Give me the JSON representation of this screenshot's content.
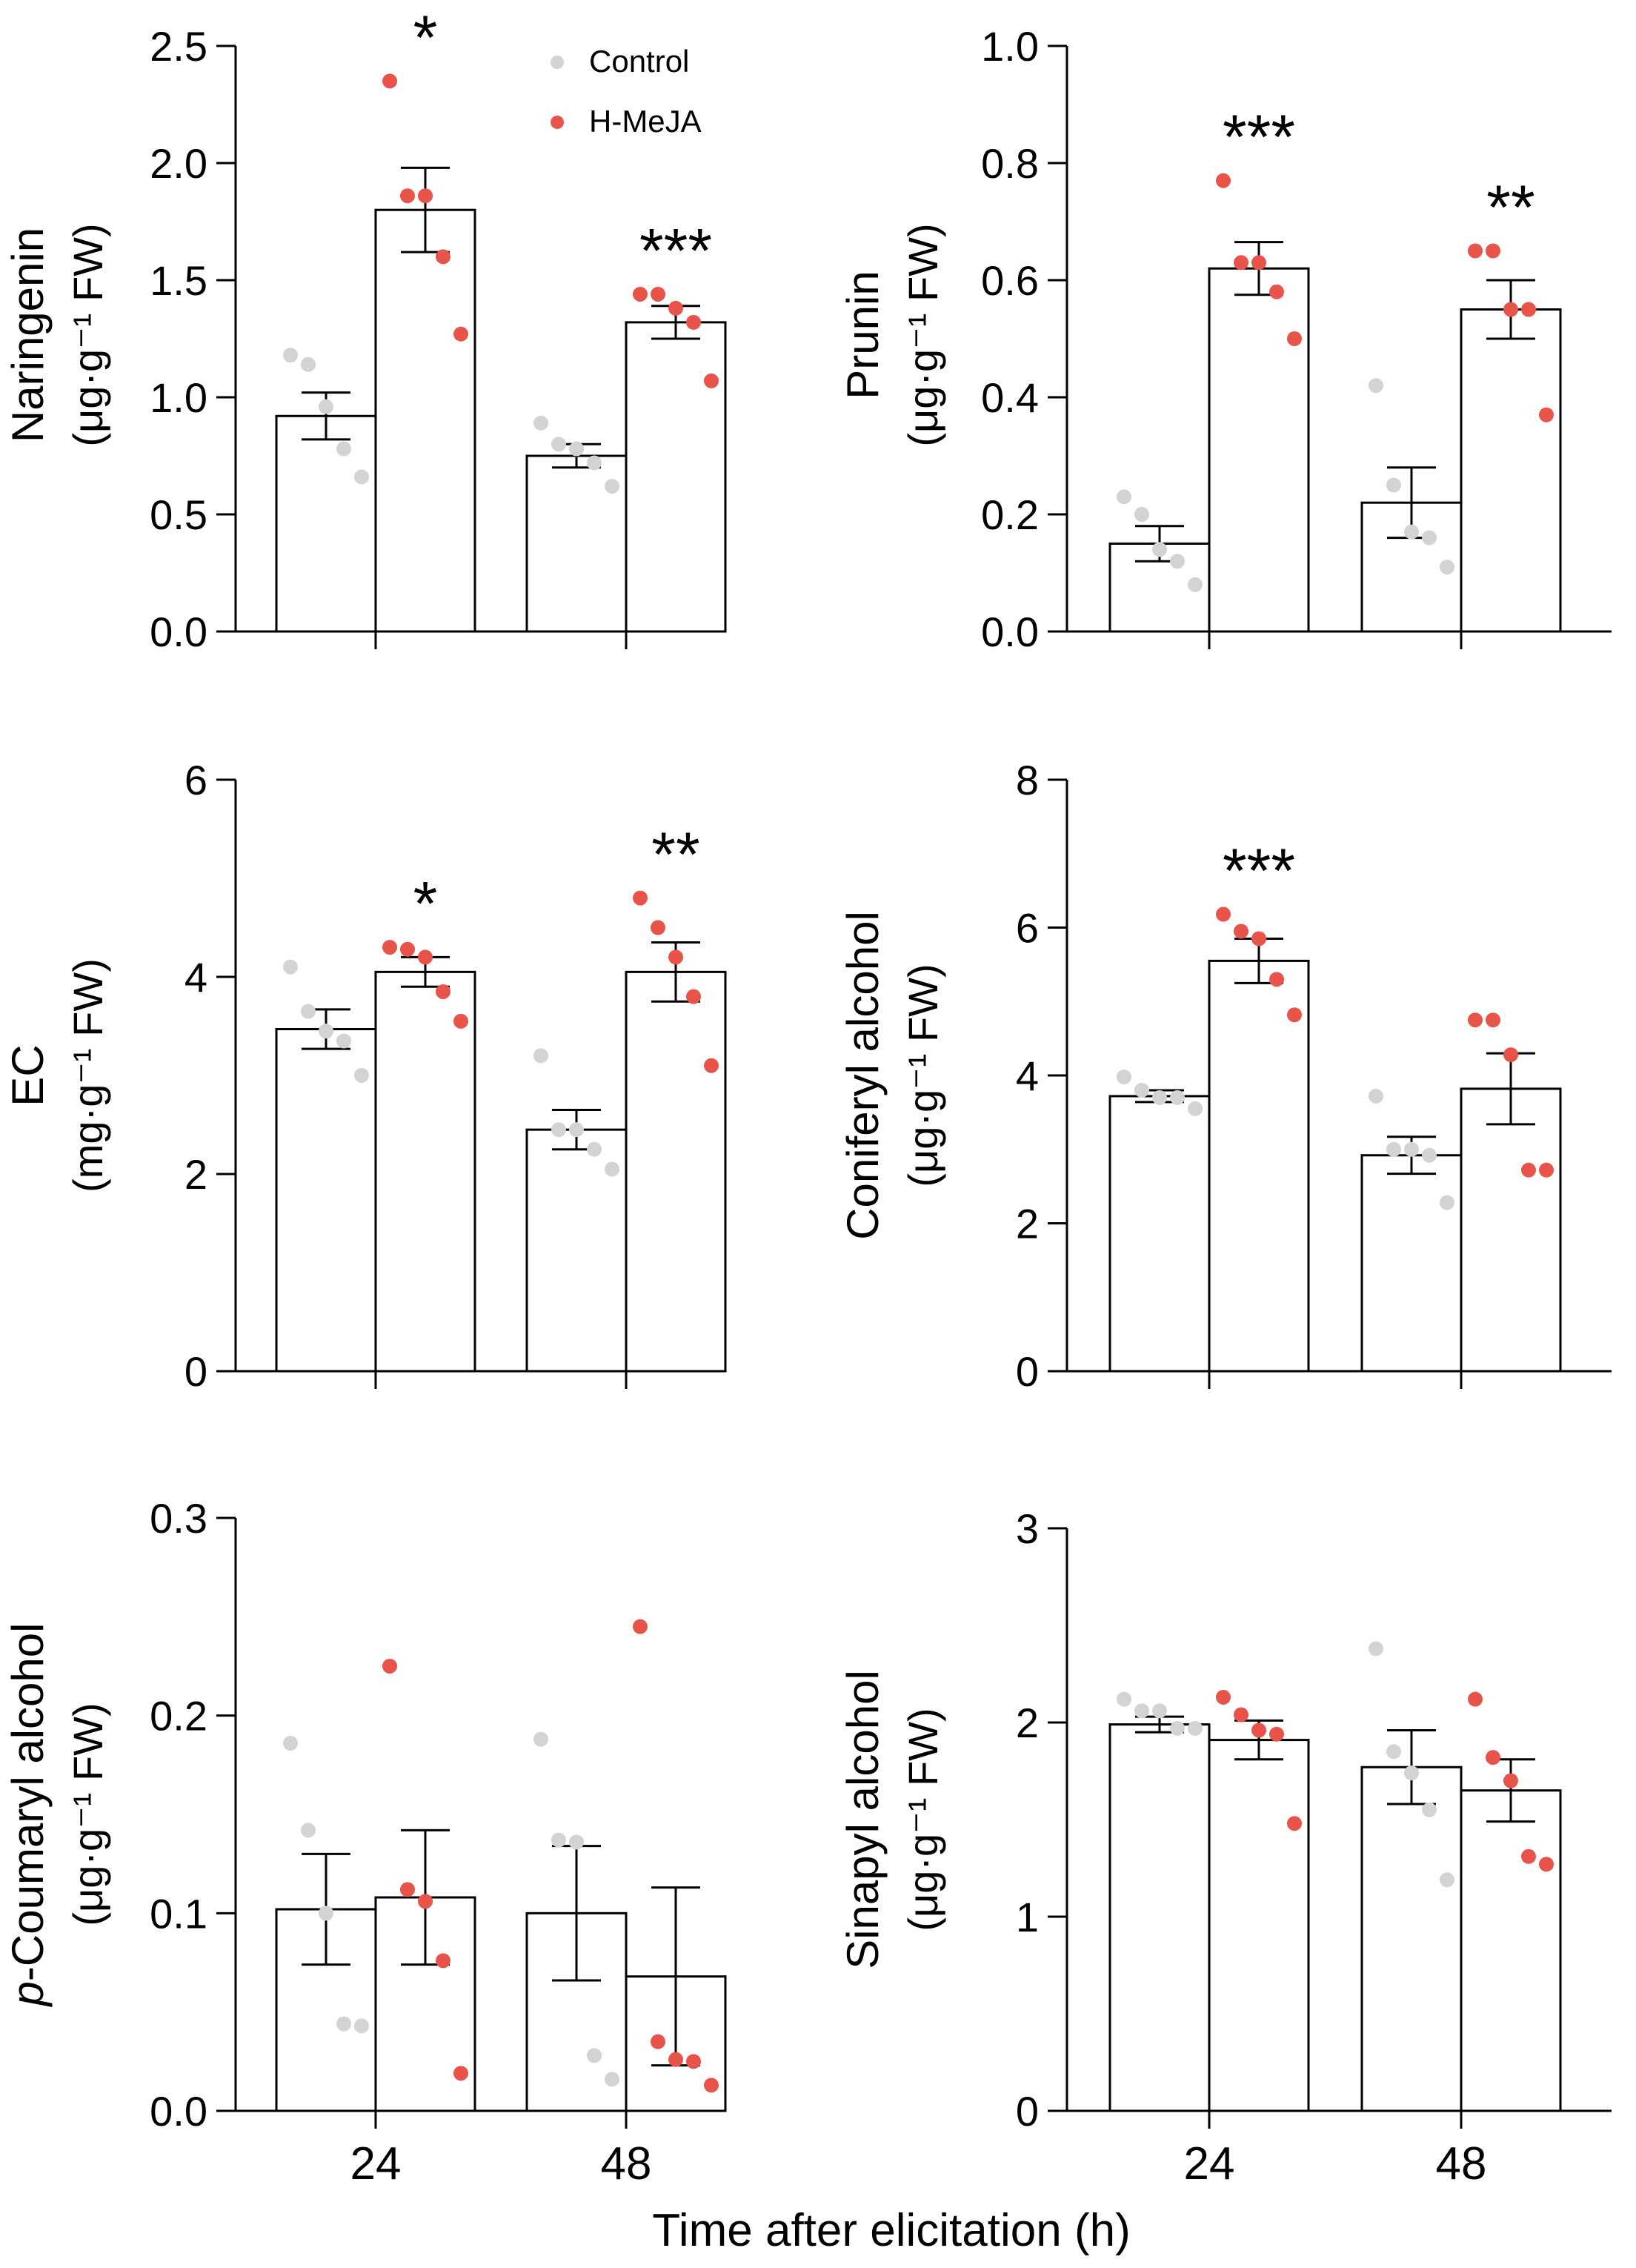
{
  "legend": [
    {
      "label": "Control",
      "color": "#d3d3d3"
    },
    {
      "label": "H-MeJA",
      "color": "#e8534a"
    }
  ],
  "x_axis_title": "Time after elicitation (h)",
  "chart_data": [
    {
      "type": "bar",
      "id": "naringenin",
      "ylabel_line1": "Naringenin",
      "ylabel_line2": "(μg·g⁻¹ FW)",
      "categories": [
        "24",
        "48"
      ],
      "show_x_ticklabels": false,
      "ylim": [
        0,
        2.5
      ],
      "ticks": [
        "0.0",
        "0.5",
        "1.0",
        "1.5",
        "2.0",
        "2.5"
      ],
      "series": [
        {
          "name": "Control",
          "means": [
            0.92,
            0.75
          ],
          "sem": [
            0.1,
            0.05
          ],
          "points": [
            [
              1.18,
              1.14,
              0.96,
              0.78,
              0.66
            ],
            [
              0.89,
              0.8,
              0.78,
              0.72,
              0.62
            ]
          ]
        },
        {
          "name": "H-MeJA",
          "means": [
            1.8,
            1.32
          ],
          "sem": [
            0.18,
            0.07
          ],
          "points": [
            [
              2.35,
              1.86,
              1.86,
              1.6,
              1.27
            ],
            [
              1.44,
              1.44,
              1.38,
              1.32,
              1.07
            ]
          ]
        }
      ],
      "significance": [
        "*",
        "***"
      ]
    },
    {
      "type": "bar",
      "id": "prunin",
      "ylabel_line1": "Prunin",
      "ylabel_line2": "(μg·g⁻¹ FW)",
      "categories": [
        "24",
        "48"
      ],
      "show_x_ticklabels": false,
      "ylim": [
        0,
        1.0
      ],
      "ticks": [
        "0.0",
        "0.2",
        "0.4",
        "0.6",
        "0.8",
        "1.0"
      ],
      "series": [
        {
          "name": "Control",
          "means": [
            0.15,
            0.22
          ],
          "sem": [
            0.03,
            0.06
          ],
          "points": [
            [
              0.23,
              0.2,
              0.14,
              0.12,
              0.08
            ],
            [
              0.42,
              0.25,
              0.17,
              0.16,
              0.11
            ]
          ]
        },
        {
          "name": "H-MeJA",
          "means": [
            0.62,
            0.55
          ],
          "sem": [
            0.045,
            0.05
          ],
          "points": [
            [
              0.77,
              0.63,
              0.63,
              0.58,
              0.5
            ],
            [
              0.65,
              0.65,
              0.55,
              0.55,
              0.37
            ]
          ]
        }
      ],
      "significance": [
        "***",
        "**"
      ]
    },
    {
      "type": "bar",
      "id": "ec",
      "ylabel_line1": "EC",
      "ylabel_line2": "(mg·g⁻¹ FW)",
      "categories": [
        "24",
        "48"
      ],
      "show_x_ticklabels": false,
      "ylim": [
        0,
        6
      ],
      "ticks": [
        "0",
        "2",
        "4",
        "6"
      ],
      "series": [
        {
          "name": "Control",
          "means": [
            3.47,
            2.45
          ],
          "sem": [
            0.2,
            0.2
          ],
          "points": [
            [
              4.1,
              3.65,
              3.45,
              3.35,
              3.0
            ],
            [
              3.2,
              2.45,
              2.45,
              2.25,
              2.05
            ]
          ]
        },
        {
          "name": "H-MeJA",
          "means": [
            4.05,
            4.05
          ],
          "sem": [
            0.15,
            0.3
          ],
          "points": [
            [
              4.3,
              4.28,
              4.2,
              3.85,
              3.55
            ],
            [
              4.8,
              4.5,
              4.2,
              3.8,
              3.1
            ]
          ]
        }
      ],
      "significance": [
        "*",
        "**"
      ]
    },
    {
      "type": "bar",
      "id": "coniferyl",
      "ylabel_line1": "Coniferyl alcohol",
      "ylabel_line2": "(μg·g⁻¹ FW)",
      "categories": [
        "24",
        "48"
      ],
      "show_x_ticklabels": false,
      "ylim": [
        0,
        8
      ],
      "ticks": [
        "0",
        "2",
        "4",
        "6",
        "8"
      ],
      "series": [
        {
          "name": "Control",
          "means": [
            3.72,
            2.92
          ],
          "sem": [
            0.08,
            0.25
          ],
          "points": [
            [
              3.98,
              3.8,
              3.7,
              3.7,
              3.55
            ],
            [
              3.72,
              3.0,
              3.0,
              2.92,
              2.28
            ]
          ]
        },
        {
          "name": "H-MeJA",
          "means": [
            5.55,
            3.82
          ],
          "sem": [
            0.3,
            0.48
          ],
          "points": [
            [
              6.18,
              5.95,
              5.85,
              5.3,
              4.82
            ],
            [
              4.75,
              4.75,
              4.28,
              2.72,
              2.72
            ]
          ]
        }
      ],
      "significance": [
        "***",
        ""
      ]
    },
    {
      "type": "bar",
      "id": "pcoumaryl",
      "ylabel_italic": "p",
      "ylabel_line1": "-Coumaryl alcohol",
      "ylabel_line2": "(μg·g⁻¹ FW)",
      "categories": [
        "24",
        "48"
      ],
      "show_x_ticklabels": true,
      "ylim": [
        0,
        0.3
      ],
      "ticks": [
        "0.0",
        "0.1",
        "0.2",
        "0.3"
      ],
      "series": [
        {
          "name": "Control",
          "means": [
            0.102,
            0.1
          ],
          "sem": [
            0.028,
            0.034
          ],
          "points": [
            [
              0.186,
              0.142,
              0.1,
              0.044,
              0.043
            ],
            [
              0.188,
              0.137,
              0.136,
              0.028,
              0.016
            ]
          ]
        },
        {
          "name": "H-MeJA",
          "means": [
            0.108,
            0.068
          ],
          "sem": [
            0.034,
            0.045
          ],
          "points": [
            [
              0.225,
              0.112,
              0.106,
              0.076,
              0.019
            ],
            [
              0.245,
              0.035,
              0.026,
              0.025,
              0.013
            ]
          ]
        }
      ],
      "significance": [
        "",
        ""
      ]
    },
    {
      "type": "bar",
      "id": "sinapyl",
      "ylabel_line1": "Sinapyl alcohol",
      "ylabel_line2": "(μg·g⁻¹ FW)",
      "categories": [
        "24",
        "48"
      ],
      "show_x_ticklabels": true,
      "ylim": [
        0,
        3
      ],
      "ticks": [
        "0",
        "1",
        "2",
        "3"
      ],
      "series": [
        {
          "name": "Control",
          "means": [
            1.99,
            1.77
          ],
          "sem": [
            0.04,
            0.19
          ],
          "points": [
            [
              2.12,
              2.06,
              2.06,
              1.97,
              1.97
            ],
            [
              2.38,
              1.85,
              1.74,
              1.55,
              1.19
            ]
          ]
        },
        {
          "name": "H-MeJA",
          "means": [
            1.91,
            1.65
          ],
          "sem": [
            0.1,
            0.16
          ],
          "points": [
            [
              2.13,
              2.04,
              1.96,
              1.94,
              1.48
            ],
            [
              2.12,
              1.82,
              1.7,
              1.31,
              1.27
            ]
          ]
        }
      ],
      "significance": [
        "",
        ""
      ]
    }
  ]
}
